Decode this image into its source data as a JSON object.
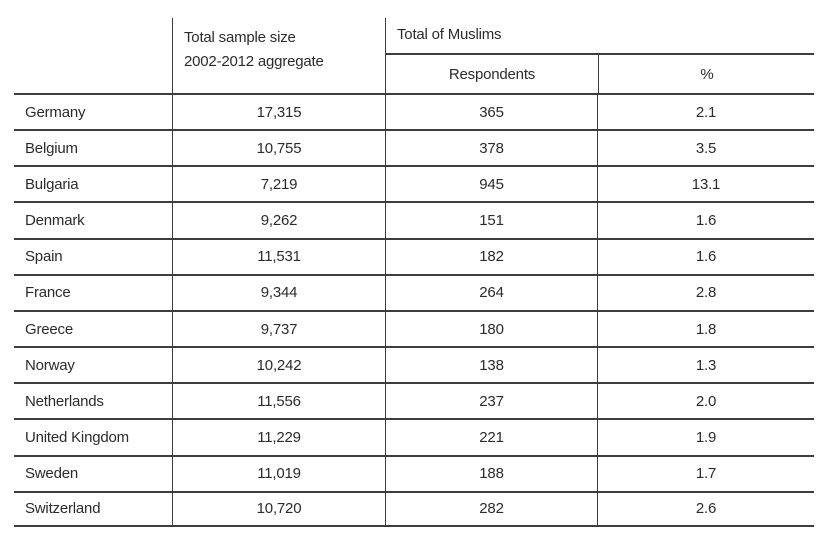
{
  "header": {
    "col_country": "",
    "col_sample_line1": "Total sample size",
    "col_sample_line2": "2002-2012 aggregate",
    "col_muslims": "Total of Muslims",
    "sub_respondents": "Respondents",
    "sub_percent": "%"
  },
  "rows": [
    {
      "country": "Germany",
      "sample": "17,315",
      "respondents": "365",
      "percent": "2.1"
    },
    {
      "country": "Belgium",
      "sample": "10,755",
      "respondents": "378",
      "percent": "3.5"
    },
    {
      "country": "Bulgaria",
      "sample": "7,219",
      "respondents": "945",
      "percent": "13.1"
    },
    {
      "country": "Denmark",
      "sample": "9,262",
      "respondents": "151",
      "percent": "1.6"
    },
    {
      "country": "Spain",
      "sample": "11,531",
      "respondents": "182",
      "percent": "1.6"
    },
    {
      "country": "France",
      "sample": "9,344",
      "respondents": "264",
      "percent": "2.8"
    },
    {
      "country": "Greece",
      "sample": "9,737",
      "respondents": "180",
      "percent": "1.8"
    },
    {
      "country": "Norway",
      "sample": "10,242",
      "respondents": "138",
      "percent": "1.3"
    },
    {
      "country": "Netherlands",
      "sample": "11,556",
      "respondents": "237",
      "percent": "2.0"
    },
    {
      "country": "United Kingdom",
      "sample": "11,229",
      "respondents": "221",
      "percent": "1.9"
    },
    {
      "country": "Sweden",
      "sample": "11,019",
      "respondents": "188",
      "percent": "1.7"
    },
    {
      "country": "Switzerland",
      "sample": "10,720",
      "respondents": "282",
      "percent": "2.6"
    }
  ],
  "colors": {
    "text": "#2b2b2b",
    "line": "#3d3d3d",
    "background": "#ffffff"
  }
}
